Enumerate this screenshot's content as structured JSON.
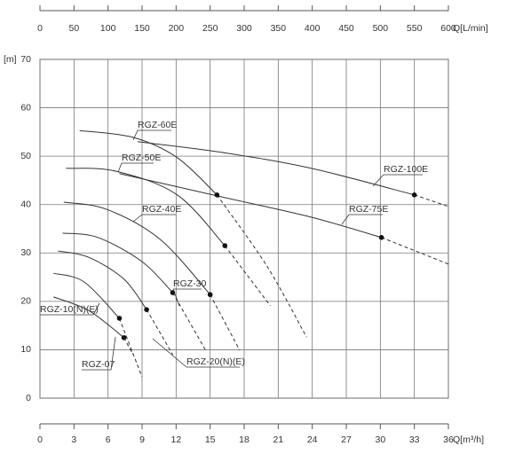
{
  "chart_data": {
    "type": "line",
    "x_label": "Q[m³/h]",
    "x2_label": "Q[L/min]",
    "y_label": "[m]",
    "xlim": [
      0,
      36
    ],
    "xticks": [
      0,
      3,
      6,
      9,
      12,
      15,
      18,
      21,
      24,
      27,
      30,
      33,
      36
    ],
    "x2lim": [
      0,
      600
    ],
    "x2ticks": [
      0,
      50,
      100,
      150,
      200,
      250,
      300,
      350,
      400,
      450,
      500,
      550,
      600
    ],
    "ylim": [
      0,
      70
    ],
    "yticks": [
      0,
      10,
      20,
      30,
      40,
      50,
      60,
      70
    ],
    "grid": true,
    "color": "#333333",
    "series": [
      {
        "name": "RGZ-100E",
        "x": [
          8.6,
          16.0,
          23.9,
          33.0
        ],
        "values": [
          53.0,
          50.8,
          47.5,
          42.0
        ],
        "dashed_x": [
          33.0,
          36.0
        ],
        "dashed_values": [
          42.0,
          39.6
        ]
      },
      {
        "name": "RGZ-75E",
        "x": [
          7.0,
          16.0,
          23.9,
          30.1
        ],
        "values": [
          46.4,
          41.6,
          37.4,
          33.2
        ],
        "dashed_x": [
          30.1,
          36.0
        ],
        "dashed_values": [
          33.2,
          27.7
        ]
      },
      {
        "name": "RGZ-60E",
        "x": [
          3.5,
          8.2,
          12.1,
          15.6
        ],
        "values": [
          55.3,
          53.9,
          49.7,
          42.0
        ],
        "dashed_x": [
          15.6,
          20.0,
          23.5
        ],
        "dashed_values": [
          42.0,
          27.3,
          12.6
        ]
      },
      {
        "name": "RGZ-50E",
        "x": [
          2.3,
          6.7,
          12.1,
          16.3
        ],
        "values": [
          47.5,
          46.9,
          42.0,
          31.5
        ],
        "dashed_x": [
          16.3,
          20.3
        ],
        "dashed_values": [
          31.5,
          19.1
        ]
      },
      {
        "name": "RGZ-40E",
        "x": [
          2.1,
          5.9,
          10.6,
          15.0
        ],
        "values": [
          40.5,
          39.0,
          32.8,
          21.4
        ],
        "dashed_x": [
          15.0,
          17.6
        ],
        "dashed_values": [
          21.4,
          9.9
        ]
      },
      {
        "name": "RGZ-30",
        "x": [
          2.0,
          5.1,
          9.0,
          11.7
        ],
        "values": [
          34.1,
          33.2,
          28.2,
          21.8
        ],
        "dashed_x": [
          11.7,
          14.6
        ],
        "dashed_values": [
          21.8,
          9.9
        ]
      },
      {
        "name": "RGZ-20(N)(E)",
        "x": [
          1.6,
          4.3,
          7.4,
          9.4
        ],
        "values": [
          30.4,
          29.1,
          24.6,
          18.3
        ],
        "dashed_x": [
          9.4,
          11.7
        ],
        "dashed_values": [
          18.3,
          9.0
        ]
      },
      {
        "name": "RGZ-10(N)(E)",
        "x": [
          1.2,
          3.9,
          7.0
        ],
        "values": [
          25.8,
          24.0,
          16.5
        ],
        "dashed_x": [
          7.0,
          9.0
        ],
        "dashed_values": [
          16.5,
          4.4
        ]
      },
      {
        "name": "RGZ-07",
        "x": [
          1.2,
          4.3,
          7.4
        ],
        "values": [
          20.9,
          18.1,
          12.5
        ],
        "dashed_x": [
          7.4,
          8.2
        ],
        "dashed_values": [
          12.5,
          9.0
        ]
      }
    ]
  }
}
